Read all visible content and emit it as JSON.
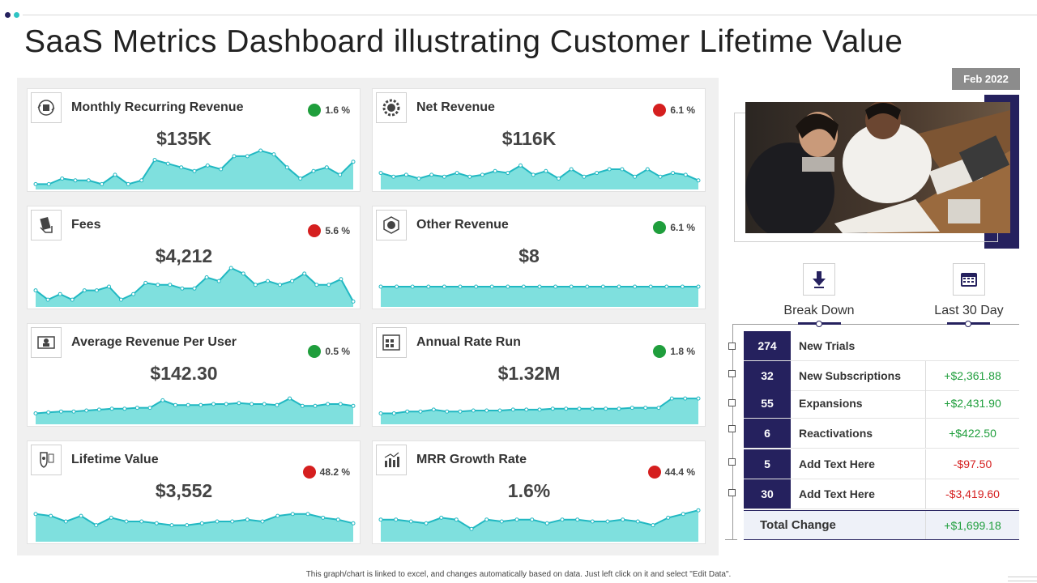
{
  "page": {
    "title": "SaaS Metrics Dashboard illustrating Customer Lifetime Value",
    "footer": "This graph/chart is linked to excel, and changes automatically based on data. Just left click on it and select \"Edit Data\"."
  },
  "date_badge": "Feb 2022",
  "colors": {
    "navy": "#25215e",
    "teal_fill": "#7fe0de",
    "teal_line": "#21b8c2",
    "up": "#1f9e3c",
    "down": "#d51f1f"
  },
  "cards": [
    {
      "title": "Monthly Recurring Revenue",
      "value": "$135K",
      "change": "1.6 %",
      "direction": "up",
      "icon": "money-cycle-icon",
      "series": [
        2,
        2,
        5,
        4,
        4,
        2,
        7,
        2,
        4,
        15,
        13,
        11,
        9,
        12,
        10,
        17,
        17,
        20,
        18,
        11,
        5,
        9,
        11,
        7,
        14
      ]
    },
    {
      "title": "Net Revenue",
      "value": "$116K",
      "change": "6.1 %",
      "direction": "down",
      "icon": "dollar-gear-icon",
      "series": [
        8,
        6,
        7,
        5,
        7,
        6,
        8,
        6,
        7,
        9,
        8,
        12,
        7,
        9,
        5,
        10,
        6,
        8,
        10,
        10,
        6,
        10,
        6,
        8,
        7,
        4
      ]
    },
    {
      "title": "Fees",
      "value": "$4,212",
      "change": "5.6 %",
      "direction": "down",
      "icon": "cash-hand-icon",
      "series": [
        8,
        3,
        6,
        3,
        8,
        8,
        10,
        3,
        6,
        12,
        11,
        11,
        9,
        9,
        15,
        13,
        20,
        17,
        11,
        13,
        11,
        13,
        17,
        11,
        11,
        14,
        2
      ]
    },
    {
      "title": "Other Revenue",
      "value": "$8",
      "change": "6.1 %",
      "direction": "up",
      "icon": "dollar-network-icon",
      "series": [
        10,
        10,
        10,
        10,
        10,
        10,
        10,
        10,
        10,
        10,
        10,
        10,
        10,
        10,
        10,
        10,
        10,
        10,
        10,
        10,
        10
      ]
    },
    {
      "title": "Average Revenue Per User",
      "value": "$142.30",
      "change": "0.5 %",
      "direction": "up",
      "icon": "user-monitor-icon",
      "series": [
        5,
        5.5,
        6,
        6,
        6.5,
        7,
        7.5,
        7.5,
        8,
        8,
        12,
        9.5,
        9.5,
        9.5,
        10,
        10,
        10.5,
        10,
        10,
        9.5,
        13,
        9,
        9,
        10,
        10,
        9
      ]
    },
    {
      "title": "Annual Rate Run",
      "value": "$1.32M",
      "change": "1.8 %",
      "direction": "up",
      "icon": "calendar-grid-icon",
      "series": [
        5,
        5,
        6,
        6,
        7,
        6,
        6,
        6.5,
        6.5,
        6.5,
        7,
        7,
        7,
        7.5,
        7.5,
        7.5,
        7.5,
        7.5,
        7.5,
        8,
        8,
        8,
        13,
        13,
        13
      ]
    },
    {
      "title": "Lifetime Value",
      "value": "$3,552",
      "change": "48.2 %",
      "direction": "down",
      "icon": "shield-user-icon",
      "series": [
        14,
        13,
        10,
        13,
        8,
        12,
        10,
        10,
        9,
        8,
        8,
        9,
        10,
        10,
        11,
        10,
        13,
        14,
        14,
        12,
        11,
        9
      ]
    },
    {
      "title": "MRR Growth Rate",
      "value": "1.6%",
      "change": "44.4 %",
      "direction": "down",
      "icon": "bar-growth-icon",
      "series": [
        11,
        11,
        10,
        9,
        12,
        11,
        6,
        11,
        10,
        11,
        11,
        9,
        11,
        11,
        10,
        10,
        11,
        10,
        8,
        12,
        14,
        16
      ]
    }
  ],
  "breakdown": {
    "tab_breakdown": "Break Down",
    "tab_last30": "Last 30 Day",
    "rows": [
      {
        "count": "274",
        "label": "New Trials",
        "amount": "",
        "sign": "pos"
      },
      {
        "count": "32",
        "label": "New Subscriptions",
        "amount": "+$2,361.88",
        "sign": "pos"
      },
      {
        "count": "55",
        "label": "Expansions",
        "amount": "+$2,431.90",
        "sign": "pos"
      },
      {
        "count": "6",
        "label": "Reactivations",
        "amount": "+$422.50",
        "sign": "pos"
      },
      {
        "count": "5",
        "label": "Add Text Here",
        "amount": "-$97.50",
        "sign": "neg"
      },
      {
        "count": "30",
        "label": "Add Text Here",
        "amount": "-$3,419.60",
        "sign": "neg"
      }
    ],
    "total_label": "Total Change",
    "total_amount": "+$1,699.18"
  }
}
